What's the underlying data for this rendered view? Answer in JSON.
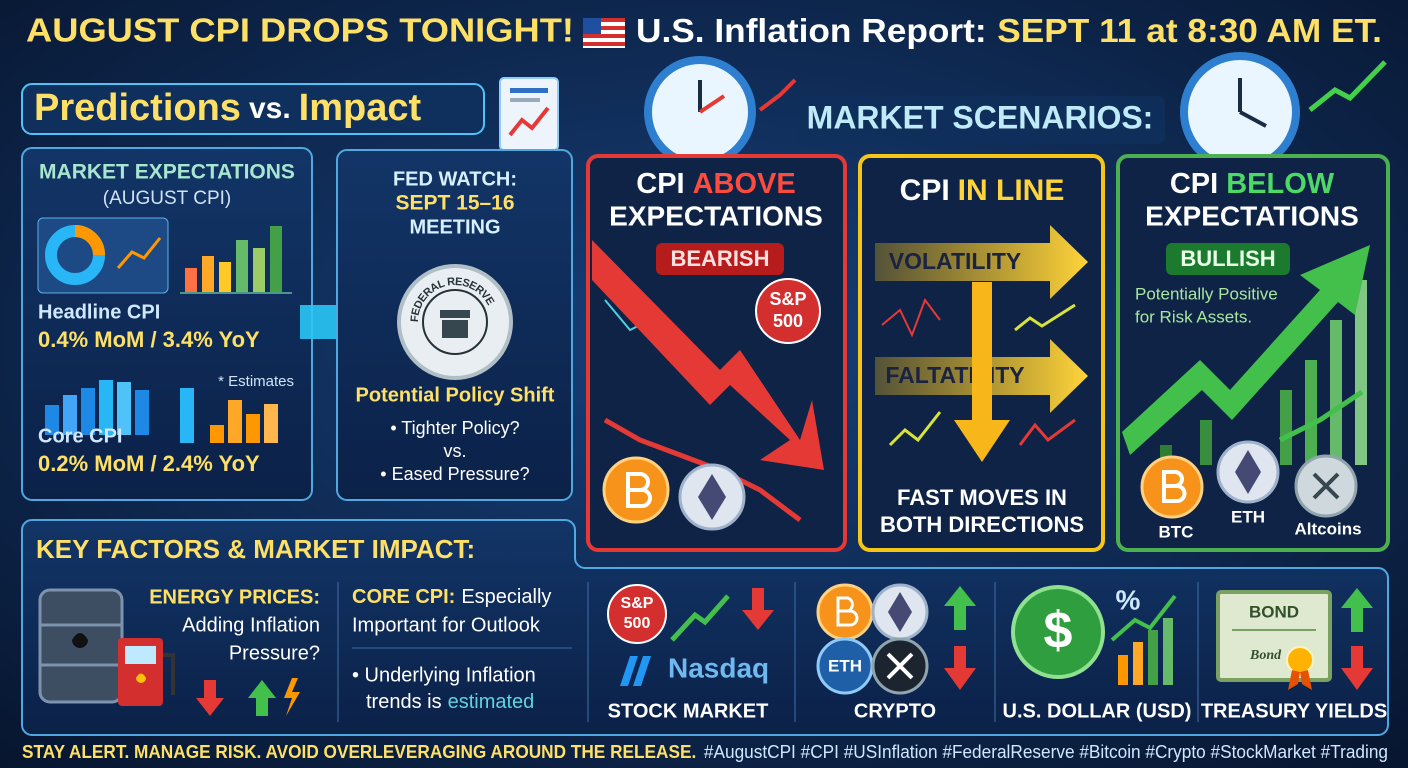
{
  "header": {
    "title_left": "AUGUST CPI DROPS TONIGHT!",
    "title_mid": "U.S. Inflation Report:",
    "title_right": "SEPT 11 at 8:30 AM ET."
  },
  "predictions": {
    "word1": "Predictions",
    "vs": "vs.",
    "word2": "Impact"
  },
  "market_expectations": {
    "title": "MARKET EXPECTATIONS",
    "subtitle": "(AUGUST CPI)",
    "headline_label": "Headline CPI",
    "headline_value": "0.4% MoM / 3.4% YoY",
    "note": "* Estimates",
    "core_label": "Core CPI",
    "core_value": "0.2% MoM / 2.4% YoY"
  },
  "fed_watch": {
    "title": "FED WATCH:",
    "date": "SEPT 15–16",
    "meeting": "MEETING",
    "seal": "FEDERAL RESERVE",
    "heading": "Potential Policy Shift",
    "items": [
      "• Tighter Policy?",
      "vs.",
      "• Eased Pressure?"
    ]
  },
  "scenarios": {
    "title": "MARKET SCENARIOS:",
    "cards": [
      {
        "prefix": "CPI",
        "keyword": "ABOVE",
        "line2": "EXPECTATIONS",
        "badge": "BEARISH",
        "index_lines": [
          "S&P",
          "500"
        ]
      },
      {
        "prefix": "CPI",
        "keyword": "IN LINE",
        "arrow1": "VOLATILITY",
        "arrow2": "FALTATILITY",
        "footer": [
          "FAST MOVES IN",
          "BOTH DIRECTIONS"
        ]
      },
      {
        "prefix": "CPI",
        "keyword": "BELOW",
        "line2": "EXPECTATIONS",
        "badge": "BULLISH",
        "note": [
          "Potentially Positive",
          "for Risk Assets."
        ],
        "coins": [
          "BTC",
          "ETH",
          "Altcoins"
        ]
      }
    ]
  },
  "key_factors": {
    "title": "KEY FACTORS & MARKET IMPACT:",
    "energy": {
      "heading": "ENERGY PRICES:",
      "lines": [
        "Adding Inflation",
        "Pressure?"
      ]
    },
    "core": {
      "heading": "CORE CPI:",
      "lines": [
        "Especially",
        "Important for Outlook",
        "• Underlying Inflation",
        "trends is"
      ],
      "highlight": "estimated"
    },
    "markets": [
      {
        "badge_lines": [
          "S&P",
          "500"
        ],
        "logo": "Nasdaq",
        "label": "STOCK MARKET"
      },
      {
        "coin": "ETH",
        "label": "CRYPTO"
      },
      {
        "symbol": "$",
        "badge": "%",
        "label": "U.S. DOLLAR (USD)"
      },
      {
        "title": "BOND",
        "signature": "Bond",
        "label": "TREASURY YIELDS"
      }
    ]
  },
  "footer": {
    "warning": "STAY ALERT. MANAGE RISK. AVOID OVERLEVERAGING AROUND THE RELEASE.",
    "hashtags": "#AugustCPI #CPI #USInflation #FederalReserve #Bitcoin #Crypto #StockMarket #Trading"
  }
}
